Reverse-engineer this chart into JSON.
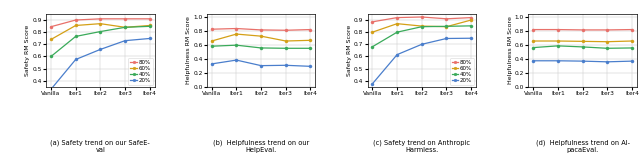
{
  "x_labels": [
    "Vanilla",
    "Iter1",
    "Iter2",
    "Iter3",
    "Iter4"
  ],
  "series_labels": [
    "80%",
    "60%",
    "40%",
    "20%"
  ],
  "marker_colors": {
    "80%": "#e8706a",
    "60%": "#d4a017",
    "40%": "#3aaa5a",
    "20%": "#4a7ecc"
  },
  "subplot_a": {
    "title": "(a) Safety trend on our SafeE-\nval",
    "ylabel": "Safety RM Score",
    "ylim": [
      0.35,
      0.95
    ],
    "yticks": [
      0.4,
      0.5,
      0.6,
      0.7,
      0.8,
      0.9
    ],
    "data": {
      "80%": [
        0.845,
        0.9,
        0.91,
        0.91,
        0.91
      ],
      "60%": [
        0.74,
        0.855,
        0.87,
        0.84,
        0.855
      ],
      "40%": [
        0.6,
        0.765,
        0.805,
        0.84,
        0.848
      ],
      "20%": [
        0.33,
        0.575,
        0.658,
        0.73,
        0.748
      ]
    }
  },
  "subplot_b": {
    "title": "(b)  Helpfulness trend on our\nHelpEval.",
    "ylabel": "Helpfulness RM Score",
    "ylim": [
      0.0,
      1.05
    ],
    "yticks": [
      0.0,
      0.2,
      0.4,
      0.6,
      0.8,
      1.0
    ],
    "data": {
      "80%": [
        0.83,
        0.84,
        0.82,
        0.815,
        0.825
      ],
      "60%": [
        0.66,
        0.76,
        0.73,
        0.66,
        0.67
      ],
      "40%": [
        0.585,
        0.6,
        0.56,
        0.555,
        0.555
      ],
      "20%": [
        0.33,
        0.385,
        0.305,
        0.31,
        0.295
      ]
    }
  },
  "subplot_c": {
    "title": "(c) Safety trend on Anthropic\nHarmless.",
    "ylabel": "Safety RM Score",
    "ylim": [
      0.35,
      0.95
    ],
    "yticks": [
      0.4,
      0.5,
      0.6,
      0.7,
      0.8,
      0.9
    ],
    "data": {
      "80%": [
        0.885,
        0.92,
        0.925,
        0.91,
        0.92
      ],
      "60%": [
        0.8,
        0.87,
        0.85,
        0.845,
        0.9
      ],
      "40%": [
        0.68,
        0.8,
        0.845,
        0.848,
        0.852
      ],
      "20%": [
        0.375,
        0.615,
        0.7,
        0.748,
        0.75
      ]
    }
  },
  "subplot_d": {
    "title": "(d)  Helpfulness trend on Al-\npacaEval.",
    "ylabel": "Helpfulness RM Score",
    "ylim": [
      0.0,
      1.05
    ],
    "yticks": [
      0.0,
      0.2,
      0.4,
      0.6,
      0.8,
      1.0
    ],
    "data": {
      "80%": [
        0.825,
        0.825,
        0.82,
        0.82,
        0.825
      ],
      "60%": [
        0.66,
        0.66,
        0.655,
        0.65,
        0.66
      ],
      "40%": [
        0.565,
        0.59,
        0.575,
        0.555,
        0.56
      ],
      "20%": [
        0.375,
        0.375,
        0.37,
        0.36,
        0.37
      ]
    }
  }
}
